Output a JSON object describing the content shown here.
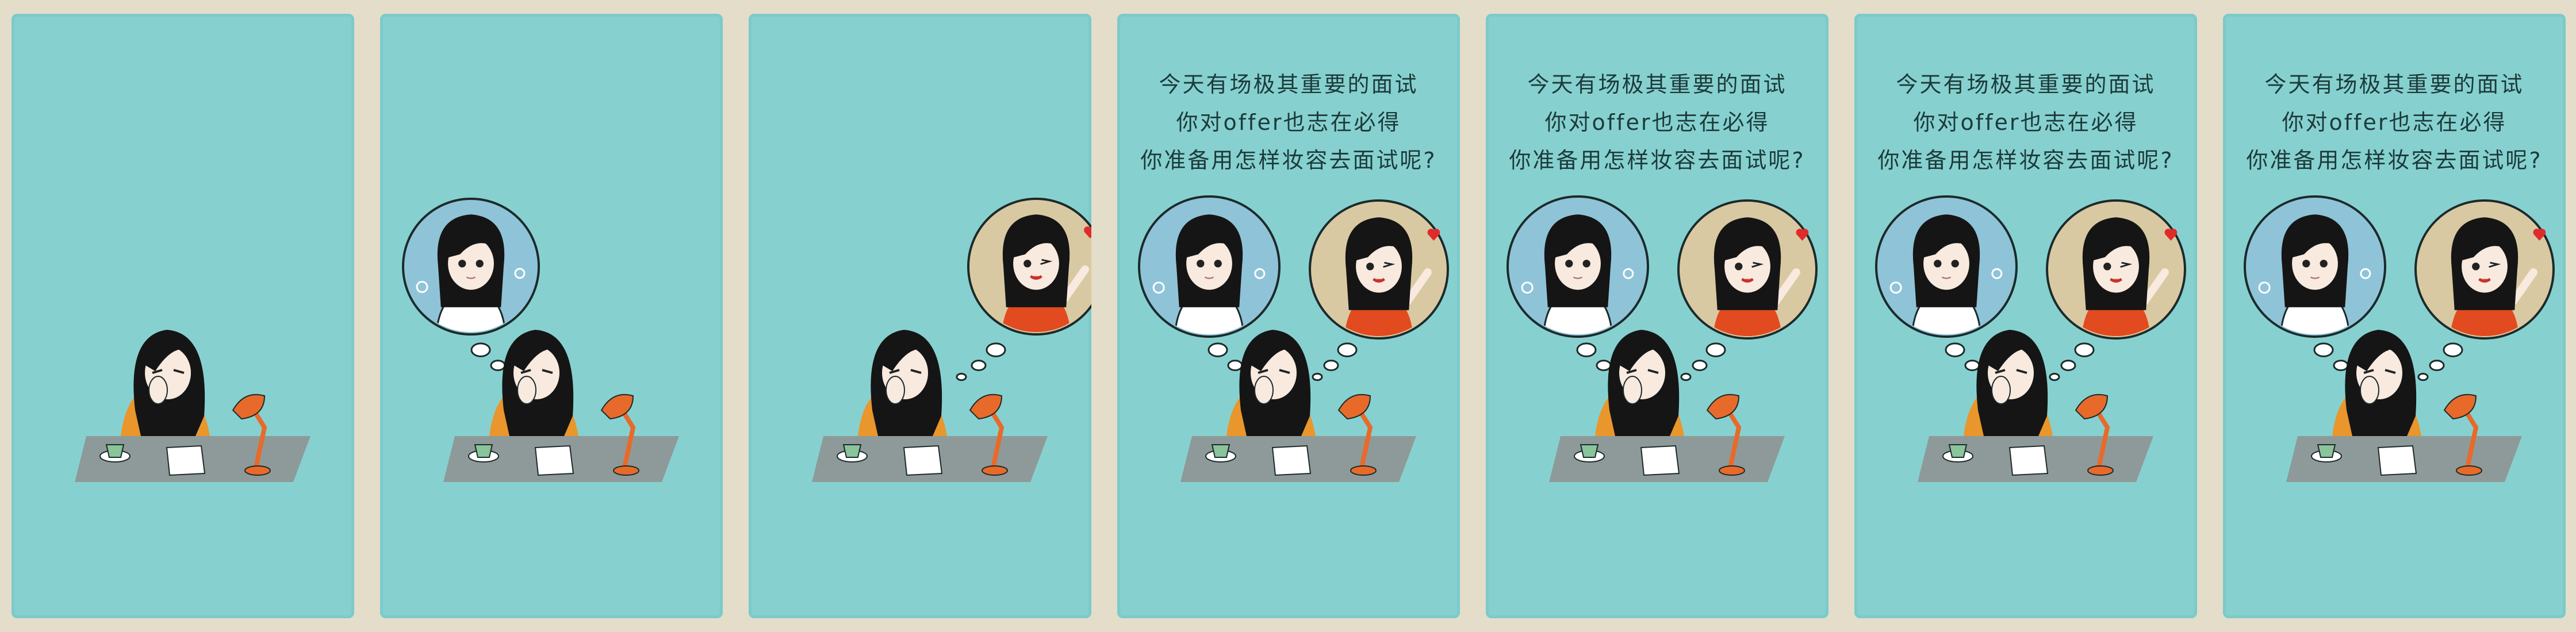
{
  "panels": [
    {
      "caption": null,
      "thought_left": false,
      "thought_right": false
    },
    {
      "caption": null,
      "thought_left": true,
      "thought_right": false
    },
    {
      "caption": null,
      "thought_left": false,
      "thought_right": true
    },
    {
      "caption": [
        "今天有场极其重要的面试",
        "你对offer也志在必得",
        "你准备用怎样妆容去面试呢?"
      ],
      "thought_left": true,
      "thought_right": true
    },
    {
      "caption": [
        "今天有场极其重要的面试",
        "你对offer也志在必得",
        "你准备用怎样妆容去面试呢?"
      ],
      "thought_left": true,
      "thought_right": true
    },
    {
      "caption": [
        "今天有场极其重要的面试",
        "你对offer也志在必得",
        "你准备用怎样妆容去面试呢?"
      ],
      "thought_left": true,
      "thought_right": true
    },
    {
      "caption": [
        "今天有场极其重要的面试",
        "你对offer也志在必得",
        "你准备用怎样妆容去面试呢?"
      ],
      "thought_left": true,
      "thought_right": true
    }
  ],
  "colors": {
    "page": "#e3ddc9",
    "panel": "#86d1d0",
    "bubble_left": "#8fc3d8",
    "bubble_right": "#d9c9a2",
    "sweater": "#e9962c",
    "dress": "#e24a1f",
    "lamp": "#e86a2a",
    "desk": "#8e9a99",
    "hair": "#151515"
  }
}
